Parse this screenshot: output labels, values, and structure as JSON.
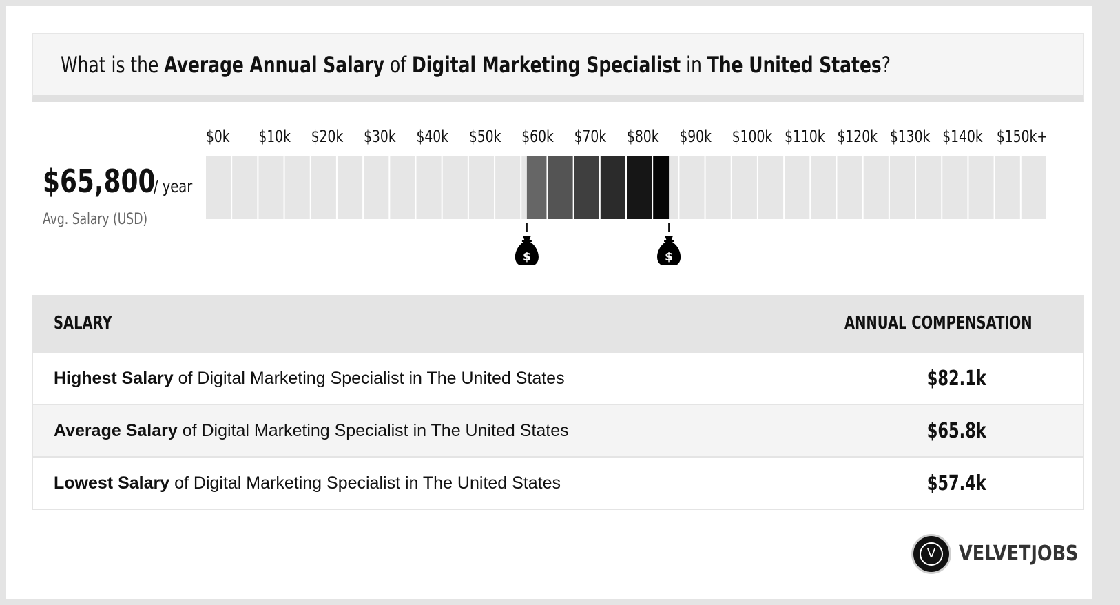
{
  "header": {
    "prefix": "What is the",
    "metric": "Average Annual Salary",
    "of": "of",
    "job": "Digital Marketing Specialist",
    "in": "in",
    "location": "The United States",
    "suffix": "?"
  },
  "summary": {
    "avg_value": "$65,800",
    "per_year": "/ year",
    "avg_label": "Avg. Salary (USD)"
  },
  "chart_data": {
    "type": "bar",
    "x_tick_labels": [
      "$0k",
      "$10k",
      "$20k",
      "$30k",
      "$40k",
      "$50k",
      "$60k",
      "$70k",
      "$80k",
      "$90k",
      "$100k",
      "$110k",
      "$120k",
      "$130k",
      "$140k",
      "$150k+"
    ],
    "xlim": [
      0,
      160000
    ],
    "segment_width": 5000,
    "range_low": 61000,
    "range_high": 88000,
    "markers": [
      {
        "value": 61000,
        "icon": "money-bag-icon",
        "symbol": "$"
      },
      {
        "value": 88000,
        "icon": "money-bag-icon",
        "symbol": "$"
      }
    ],
    "colors": {
      "track": "#e6e6e6",
      "range_start": "#6e6e6e",
      "range_end": "#000000"
    }
  },
  "table": {
    "col_salary": "SALARY",
    "col_comp": "ANNUAL COMPENSATION",
    "rows": [
      {
        "label_bold": "Highest Salary",
        "label_rest": "of Digital Marketing Specialist in The United States",
        "value": "$82.1k"
      },
      {
        "label_bold": "Average Salary",
        "label_rest": "of Digital Marketing Specialist in The United States",
        "value": "$65.8k"
      },
      {
        "label_bold": "Lowest Salary",
        "label_rest": "of Digital Marketing Specialist in The United States",
        "value": "$57.4k"
      }
    ]
  },
  "logo": {
    "mark": "V",
    "text": "VELVETJOBS"
  }
}
